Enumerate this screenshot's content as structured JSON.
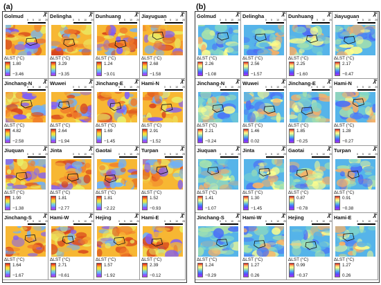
{
  "panels": [
    {
      "label": "(a)",
      "sites": [
        {
          "name": "Golmud",
          "max": "1.80",
          "min": "−3.46",
          "theme": "warm"
        },
        {
          "name": "Delingha",
          "max": "3.29",
          "min": "−3.35",
          "theme": "warm"
        },
        {
          "name": "Dunhuang",
          "max": "1.24",
          "min": "−3.01",
          "theme": "warm"
        },
        {
          "name": "Jiayuguan",
          "max": "2.68",
          "min": "−1.58",
          "theme": "warm"
        },
        {
          "name": "Jinchang-N",
          "max": "4.82",
          "min": "−2.58",
          "theme": "warm"
        },
        {
          "name": "Wuwei",
          "max": "2.64",
          "min": "−1.94",
          "theme": "warm"
        },
        {
          "name": "Jinchang-E",
          "max": "1.69",
          "min": "−1.45",
          "theme": "warm"
        },
        {
          "name": "Hami-N",
          "max": "2.91",
          "min": "−1.52",
          "theme": "warm"
        },
        {
          "name": "Jiuquan",
          "max": "1.90",
          "min": "−1.38",
          "theme": "warm"
        },
        {
          "name": "Jinta",
          "max": "1.81",
          "min": "−2.77",
          "theme": "warm"
        },
        {
          "name": "Gaotai",
          "max": "1.81",
          "min": "−2.22",
          "theme": "warm"
        },
        {
          "name": "Turpan",
          "max": "1.52",
          "min": "−0.93",
          "theme": "warm"
        },
        {
          "name": "Jinchang-S",
          "max": "1.64",
          "min": "−1.67",
          "theme": "warm"
        },
        {
          "name": "Hami-W",
          "max": "2.71",
          "min": "−0.61",
          "theme": "warm"
        },
        {
          "name": "Hejing",
          "max": "1.57",
          "min": "−1.92",
          "theme": "warm"
        },
        {
          "name": "Hami-E",
          "max": "2.39",
          "min": "−0.12",
          "theme": "warm"
        }
      ]
    },
    {
      "label": "(b)",
      "sites": [
        {
          "name": "Golmud",
          "max": "2.26",
          "min": "−1.08",
          "theme": "cool"
        },
        {
          "name": "Delingha",
          "max": "2.56",
          "min": "−1.57",
          "theme": "cool"
        },
        {
          "name": "Dunhuang",
          "max": "2.25",
          "min": "−1.60",
          "theme": "cool"
        },
        {
          "name": "Jiayuguan",
          "max": "2.17",
          "min": "−0.47",
          "theme": "cool"
        },
        {
          "name": "Jinchang-N",
          "max": "2.21",
          "min": "−0.24",
          "theme": "cool"
        },
        {
          "name": "Wuwei",
          "max": "1.46",
          "min": "0.02",
          "theme": "cool"
        },
        {
          "name": "Jinchang-E",
          "max": "1.85",
          "min": "−0.25",
          "theme": "cool"
        },
        {
          "name": "Hami-N",
          "max": "1.28",
          "min": "−0.27",
          "theme": "cool"
        },
        {
          "name": "Jiuquan",
          "max": "1.41",
          "min": "−1.07",
          "theme": "cool"
        },
        {
          "name": "Jinta",
          "max": "1.30",
          "min": "−1.45",
          "theme": "cool"
        },
        {
          "name": "Gaotai",
          "max": "0.87",
          "min": "−0.78",
          "theme": "cool"
        },
        {
          "name": "Turpan",
          "max": "0.91",
          "min": "−0.38",
          "theme": "cool"
        },
        {
          "name": "Jinchang-S",
          "max": "1.24",
          "min": "−0.29",
          "theme": "cool"
        },
        {
          "name": "Hami-W",
          "max": "1.27",
          "min": "0.26",
          "theme": "cool"
        },
        {
          "name": "Hejing",
          "max": "0.99",
          "min": "−0.37",
          "theme": "cool"
        },
        {
          "name": "Hami-E",
          "max": "1.27",
          "min": "0.26",
          "theme": "cool"
        }
      ]
    }
  ],
  "legend_title": "ΔLST (°C)",
  "scale_ticks": [
    "0",
    "5",
    "10",
    "20"
  ],
  "north_letter": "N",
  "north_arrow_icon": "north-arrow-icon",
  "colors": {
    "warm": [
      "#e8f06a",
      "#f7b733",
      "#f07a2a",
      "#d7441c",
      "#6ab0ff",
      "#7b5cff"
    ],
    "cool": [
      "#4a6cf7",
      "#56b4e9",
      "#7fd6c9",
      "#abe4a8",
      "#ffff8c",
      "#fdae61"
    ]
  }
}
